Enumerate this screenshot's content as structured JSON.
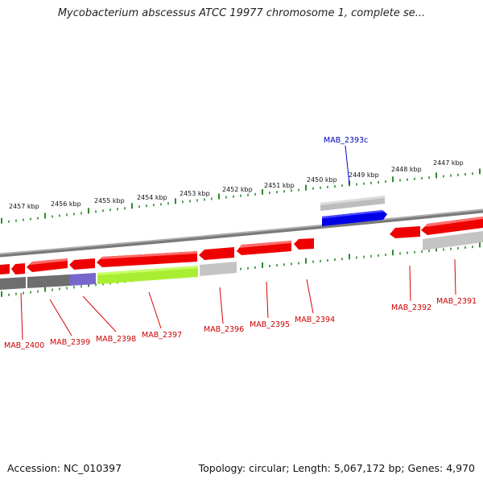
{
  "title": "Mycobacterium abscessus ATCC 19977 chromosome 1, complete se...",
  "footer": {
    "accession": "Accession: NC_010397",
    "summary": "Topology: circular; Length: 5,067,172 bp; Genes: 4,970"
  },
  "colors": {
    "backbone": "#8c8c8c",
    "tick": "#2e8b2e",
    "gene_red": "#ff0000",
    "gene_blue": "#0000ee",
    "gene_green": "#aaee33",
    "gene_purple": "#7766cc",
    "gene_darkgray": "#707070",
    "gene_lightgray": "#c8c8c8",
    "label_red": "#cc0000",
    "label_blue": "#0000bb"
  },
  "scale_labels": [
    "2457 kbp",
    "2456 kbp",
    "2455 kbp",
    "2454 kbp",
    "2453 kbp",
    "2452 kbp",
    "2451 kbp",
    "2450 kbp",
    "2449 kbp",
    "2448 kbp",
    "2447 kbp"
  ],
  "gene_labels": [
    {
      "text": "MAB_2400",
      "color": "#cc0000"
    },
    {
      "text": "MAB_2399",
      "color": "#cc0000"
    },
    {
      "text": "MAB_2398",
      "color": "#cc0000"
    },
    {
      "text": "MAB_2397",
      "color": "#cc0000"
    },
    {
      "text": "MAB_2396",
      "color": "#cc0000"
    },
    {
      "text": "MAB_2395",
      "color": "#cc0000"
    },
    {
      "text": "MAB_2394",
      "color": "#cc0000"
    },
    {
      "text": "MAB_2392",
      "color": "#cc0000"
    },
    {
      "text": "MAB_2391",
      "color": "#cc0000"
    },
    {
      "text": "MAB_2393c",
      "color": "#0000bb"
    }
  ]
}
